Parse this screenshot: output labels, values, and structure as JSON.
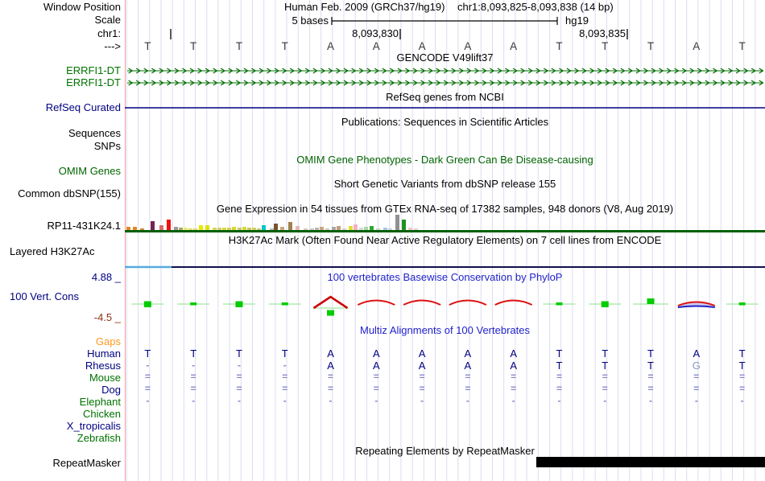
{
  "header": {
    "label_window_position": "Window Position",
    "label_scale": "Scale",
    "label_chrom": "chr1:",
    "label_strand": "--->",
    "assembly_title": "Human Feb. 2009 (GRCh37/hg19)",
    "window_position": "chr1:8,093,825-8,093,838 (14 bp)",
    "scale_value": "5 bases",
    "assembly_short": "hg19",
    "coordinate_labels": [
      "8,093,830",
      "8,093,835"
    ]
  },
  "sequence": {
    "bases": [
      "T",
      "T",
      "T",
      "T",
      "A",
      "A",
      "A",
      "A",
      "A",
      "T",
      "T",
      "T",
      "A",
      "T"
    ]
  },
  "tracks": {
    "gencode": {
      "title": "GENCODE V49lift37",
      "gene1": "ERRFI1-DT",
      "gene2": "ERRFI1-DT",
      "color": "#006e00"
    },
    "refseq": {
      "title": "RefSeq genes from NCBI",
      "label": "RefSeq Curated",
      "color": "#000080"
    },
    "publications": {
      "title": "Publications: Sequences in Scientific Articles",
      "label_sequences": "Sequences",
      "label_snps": "SNPs"
    },
    "omim": {
      "title": "OMIM Gene Phenotypes - Dark Green Can Be Disease-causing",
      "label": "OMIM Genes",
      "color": "#006400"
    },
    "dbsnp": {
      "title": "Short Genetic Variants from dbSNP release 155",
      "label": "Common dbSNP(155)"
    },
    "gtex": {
      "title": "Gene Expression in 54 tissues from GTEx RNA-seq of 17382 samples, 948 donors (V8, Aug 2019)",
      "label": "RP11-431K24.1",
      "baseline_color": "#006000",
      "bars": [
        [
          2,
          4,
          "#e08828"
        ],
        [
          10,
          4,
          "#e08828"
        ],
        [
          19,
          2,
          "#cc8833"
        ],
        [
          32,
          11,
          "#772255"
        ],
        [
          43,
          6,
          "#dd6666"
        ],
        [
          52,
          13,
          "#ee1111"
        ],
        [
          61,
          4,
          "#999999"
        ],
        [
          67,
          3,
          "#aaa860"
        ],
        [
          73,
          3,
          "#e8e87a"
        ],
        [
          79,
          2,
          "#e0e060"
        ],
        [
          85,
          2,
          "#d8d870"
        ],
        [
          92,
          6,
          "#e8e800"
        ],
        [
          100,
          6,
          "#e0e000"
        ],
        [
          109,
          3,
          "#d8d860"
        ],
        [
          115,
          3,
          "#d0d070"
        ],
        [
          121,
          3,
          "#d8d840"
        ],
        [
          127,
          3,
          "#d0d060"
        ],
        [
          133,
          4,
          "#d8d830"
        ],
        [
          140,
          3,
          "#c8c870"
        ],
        [
          146,
          4,
          "#d8d840"
        ],
        [
          152,
          3,
          "#c8c860"
        ],
        [
          158,
          3,
          "#d0d060"
        ],
        [
          164,
          2,
          "#c8c878"
        ],
        [
          170,
          6,
          "#00c8c8"
        ],
        [
          180,
          2,
          "#b8b8b8"
        ],
        [
          185,
          8,
          "#7a5230"
        ],
        [
          193,
          4,
          "#c8a878"
        ],
        [
          203,
          10,
          "#a08050"
        ],
        [
          212,
          5,
          "#e8b8b8"
        ],
        [
          222,
          2,
          "#d8c8b8"
        ],
        [
          230,
          2,
          "#c8c8c8"
        ],
        [
          236,
          3,
          "#b8b8b8"
        ],
        [
          242,
          4,
          "#c8a888"
        ],
        [
          249,
          2,
          "#d0c8c0"
        ],
        [
          257,
          4,
          "#a8a8a8"
        ],
        [
          263,
          5,
          "#c0a080"
        ],
        [
          270,
          2,
          "#d0d0d0"
        ],
        [
          278,
          5,
          "#e0e030"
        ],
        [
          284,
          7,
          "#f0b0c8"
        ],
        [
          291,
          3,
          "#d8d8d8"
        ],
        [
          297,
          4,
          "#a8d8a8"
        ],
        [
          304,
          5,
          "#30a830"
        ],
        [
          312,
          2,
          "#c8d8c8"
        ],
        [
          321,
          3,
          "#a8c8e8"
        ],
        [
          327,
          2,
          "#d0d0d0"
        ],
        [
          336,
          19,
          "#909090"
        ],
        [
          344,
          13,
          "#209020"
        ],
        [
          352,
          3,
          "#f0c8c8"
        ],
        [
          359,
          2,
          "#d8d8d8"
        ]
      ]
    },
    "h3k27ac": {
      "title": "H3K27Ac Mark (Often Found Near Active Regulatory Elements) on 7 cell lines from ENCODE",
      "label": "Layered H3K27Ac",
      "segment_blue": "#55aadd",
      "line_color": "#10104a"
    },
    "phylop": {
      "title": "100 vertebrates Basewise Conservation by PhyloP",
      "label": "100 Vert. Cons",
      "scale_max": "4.88 _",
      "scale_min": "-4.5 _",
      "pos_color": "#00cc00",
      "neg_color": "#dd1111",
      "per_base": [
        "square",
        "tick",
        "square",
        "tick",
        "peak",
        "arc",
        "arc",
        "arc",
        "arc",
        "tick",
        "square",
        "square_high",
        "arc_blue",
        "tick"
      ]
    },
    "multiz": {
      "title": "Multiz Alignments of 100 Vertebrates",
      "species": [
        {
          "name": "Gaps",
          "color_class": "orange",
          "cells": [
            "",
            "",
            "",
            "",
            "",
            "",
            "",
            "",
            "",
            "",
            "",
            "",
            "",
            ""
          ]
        },
        {
          "name": "Human",
          "color_class": "navy",
          "cells": [
            "T",
            "T",
            "T",
            "T",
            "A",
            "A",
            "A",
            "A",
            "A",
            "T",
            "T",
            "T",
            "A",
            "T"
          ]
        },
        {
          "name": "Rhesus",
          "color_class": "navy",
          "cells": [
            "-",
            "-",
            "-",
            "-",
            "A",
            "A",
            "A",
            "A",
            "A",
            "T",
            "T",
            "T",
            "G",
            "T"
          ],
          "muted_cols": [
            12
          ]
        },
        {
          "name": "Mouse",
          "color_class": "green",
          "cells": [
            "=",
            "=",
            "=",
            "=",
            "=",
            "=",
            "=",
            "=",
            "=",
            "=",
            "=",
            "=",
            "=",
            "="
          ]
        },
        {
          "name": "Dog",
          "color_class": "navy",
          "cells": [
            "=",
            "=",
            "=",
            "=",
            "=",
            "=",
            "=",
            "=",
            "=",
            "=",
            "=",
            "=",
            "=",
            "="
          ]
        },
        {
          "name": "Elephant",
          "color_class": "green",
          "cells": [
            "-",
            "-",
            "-",
            "-",
            "-",
            "-",
            "-",
            "-",
            "-",
            "-",
            "-",
            "-",
            "-",
            "-"
          ]
        },
        {
          "name": "Chicken",
          "color_class": "green",
          "cells": [
            "",
            "",
            "",
            "",
            "",
            "",
            "",
            "",
            "",
            "",
            "",
            "",
            "",
            ""
          ]
        },
        {
          "name": "X_tropicalis",
          "color_class": "navy",
          "cells": [
            "",
            "",
            "",
            "",
            "",
            "",
            "",
            "",
            "",
            "",
            "",
            "",
            "",
            ""
          ]
        },
        {
          "name": "Zebrafish",
          "color_class": "green",
          "cells": [
            "",
            "",
            "",
            "",
            "",
            "",
            "",
            "",
            "",
            "",
            "",
            "",
            "",
            ""
          ]
        }
      ]
    },
    "repeatmasker": {
      "title": "Repeating Elements by RepeatMasker",
      "label": "RepeatMasker",
      "bar_color": "#000000"
    }
  },
  "colors": {
    "grid": "#dddcf0",
    "left_edge": "#ff9999",
    "gene_green": "#006e00",
    "label_green": "#007200",
    "label_navy": "#000080",
    "title_blue": "#2222cc",
    "gaps_orange": "#ff9922",
    "scale_min_red": "#883311",
    "cons_light_green": "#a0e8a0",
    "cons_bright_green": "#00cc00",
    "cons_red": "#dd1111",
    "cons_blue": "#2222cc",
    "dash_blue": "#8888cc"
  }
}
